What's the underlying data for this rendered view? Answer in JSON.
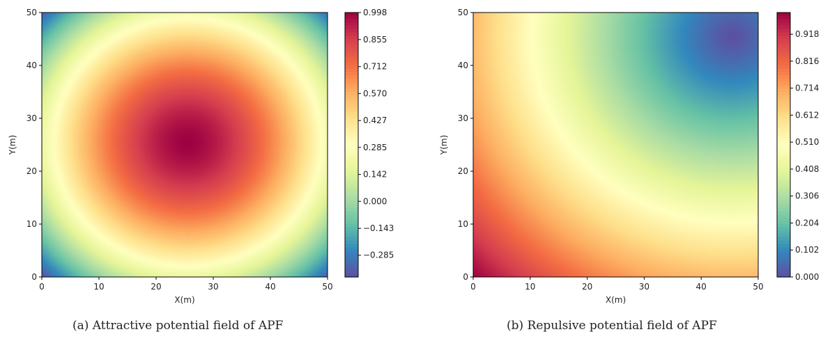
{
  "chart_data": [
    {
      "type": "heatmap",
      "title": "",
      "caption": "(a) Attractive potential field of APF",
      "xlabel": "X(m)",
      "ylabel": "Y(m)",
      "xlim": [
        0,
        50
      ],
      "ylim": [
        0,
        50
      ],
      "xticks": [
        "0",
        "10",
        "20",
        "30",
        "40",
        "50"
      ],
      "yticks": [
        "0",
        "10",
        "20",
        "30",
        "40",
        "50"
      ],
      "colormap": "Spectral_r",
      "field": {
        "kind": "attractive",
        "peak_x": 25.5,
        "peak_y": 25.5,
        "peak_value": 0.998,
        "min_value": -0.4
      },
      "colorbar": {
        "min": -0.4,
        "max": 0.998,
        "ticks": [
          0.998,
          0.855,
          0.712,
          0.57,
          0.427,
          0.285,
          0.142,
          0.0,
          -0.143,
          -0.285
        ],
        "tick_labels": [
          "0.998",
          "0.855",
          "0.712",
          "0.570",
          "0.427",
          "0.285",
          "0.142",
          "0.000",
          "−0.143",
          "−0.285"
        ]
      }
    },
    {
      "type": "heatmap",
      "title": "",
      "caption": "(b) Repulsive potential field of APF",
      "xlabel": "X(m)",
      "ylabel": "Y(m)",
      "xlim": [
        0,
        50
      ],
      "ylim": [
        0,
        50
      ],
      "xticks": [
        "0",
        "10",
        "20",
        "30",
        "40",
        "50"
      ],
      "yticks": [
        "0",
        "10",
        "20",
        "30",
        "40",
        "50"
      ],
      "colormap": "Spectral_r",
      "field": {
        "kind": "repulsive",
        "min_x": 45.5,
        "min_y": 45.5,
        "max_at": [
          0,
          0
        ]
      },
      "colorbar": {
        "min": 0.0,
        "max": 1.0,
        "ticks": [
          0.918,
          0.816,
          0.714,
          0.612,
          0.51,
          0.408,
          0.306,
          0.204,
          0.102,
          0.0
        ],
        "tick_labels": [
          "0.918",
          "0.816",
          "0.714",
          "0.612",
          "0.510",
          "0.408",
          "0.306",
          "0.204",
          "0.102",
          "0.000"
        ]
      }
    }
  ]
}
